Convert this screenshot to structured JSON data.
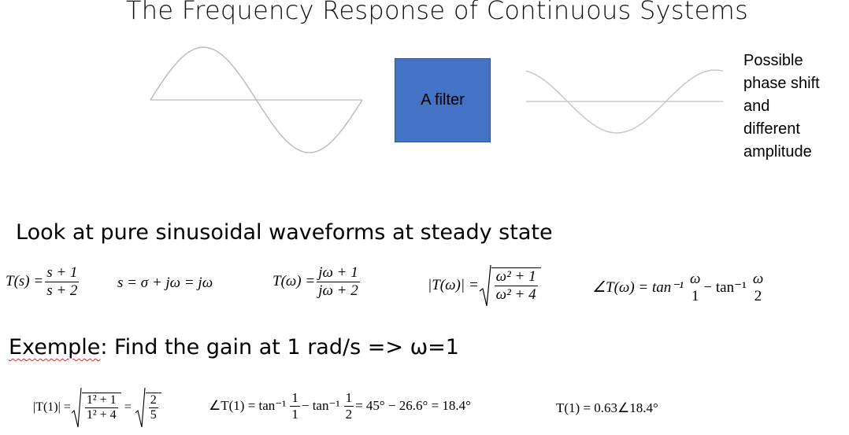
{
  "title": "The Frequency Response of Continuous Systems",
  "filter_label": "A filter",
  "side_note": [
    "Possible",
    "phase shift",
    "and",
    "different",
    "amplitude"
  ],
  "heading1": "Look at pure sinusoidal  waveforms at steady state",
  "heading2": {
    "word": "Exemple",
    "rest": ": Find the gain at 1 rad/s => ω=1"
  },
  "equations": {
    "ts_lhs": "T(s) =",
    "ts_num": "s + 1",
    "ts_den": "s + 2",
    "s_def": "s = σ + jω = jω",
    "tw_lhs": "T(ω) =",
    "tw_num": "jω + 1",
    "tw_den": "jω + 2",
    "mag_lhs": "|T(ω)| =",
    "mag_num": "ω² + 1",
    "mag_den": "ω² + 4",
    "phase_lhs": "∠T(ω) = tan⁻¹",
    "phase_f1_num": "ω",
    "phase_f1_den": "1",
    "phase_mid": " − tan⁻¹",
    "phase_f2_num": "ω",
    "phase_f2_den": "2",
    "ex_mag_lhs": "|T(1)| =",
    "ex_mag_num": "1² + 1",
    "ex_mag_den": "1² + 4",
    "ex_mag_eq": "=",
    "ex_mag_r_num": "2",
    "ex_mag_r_den": "5",
    "ex_phase_lhs": "∠T(1) = tan⁻¹",
    "ex_phase_f1_num": "1",
    "ex_phase_f1_den": "1",
    "ex_phase_mid": " − tan⁻¹",
    "ex_phase_f2_num": "1",
    "ex_phase_f2_den": "2",
    "ex_phase_result": " = 45° − 26.6° = 18.4°",
    "ex_result": "T(1) = 0.63∠18.4°"
  },
  "colors": {
    "filter_fill": "#4472C4",
    "wave": "#c0c0c0"
  }
}
